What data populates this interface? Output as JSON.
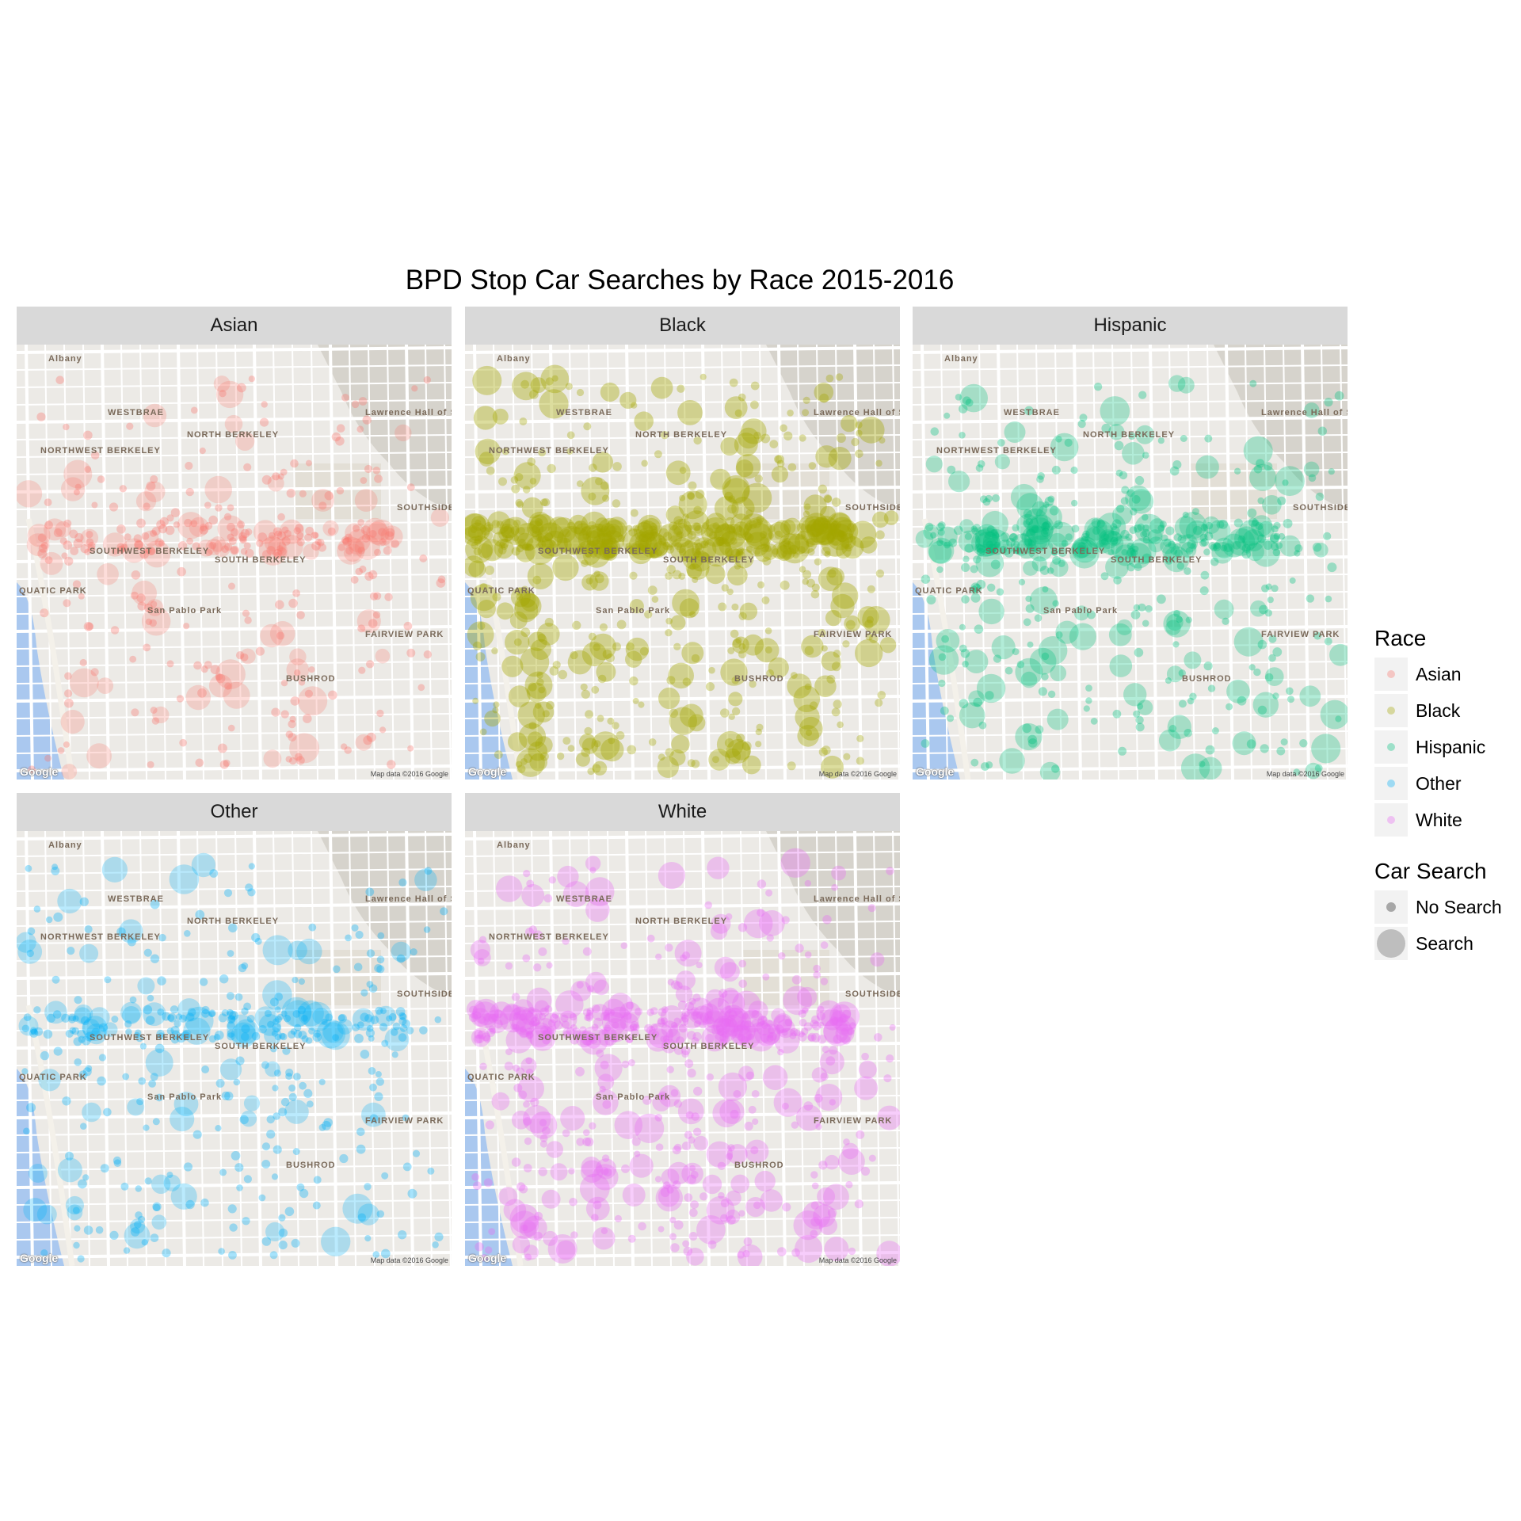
{
  "title": "BPD Stop Car Searches by Race 2015-2016",
  "panels": [
    {
      "label": "Asian",
      "color": "#F8766D",
      "density": 0.35
    },
    {
      "label": "Black",
      "color": "#A3A500",
      "density": 1.0
    },
    {
      "label": "Hispanic",
      "color": "#00BF7D",
      "density": 0.6
    },
    {
      "label": "Other",
      "color": "#00B0F6",
      "density": 0.45
    },
    {
      "label": "White",
      "color": "#E76BF3",
      "density": 0.8
    }
  ],
  "map": {
    "tags": [
      "Albany",
      "WESTBRAE",
      "NORTHWEST BERKELEY",
      "NORTH BERKELEY",
      "SOUTHWEST BERKELEY",
      "SOUTH BERKELEY",
      "SOUTHSIDE",
      "QUATIC PARK",
      "FAIRVIEW PARK",
      "BUSHROD",
      "San Pablo Park",
      "Lawrence Hall of Scien"
    ],
    "credit": "Map data ©2016 Google",
    "brand": "Google"
  },
  "legend": {
    "race_title": "Race",
    "race_keys": [
      {
        "label": "Asian",
        "color": "#F8766D"
      },
      {
        "label": "Black",
        "color": "#A3A500"
      },
      {
        "label": "Hispanic",
        "color": "#00BF7D"
      },
      {
        "label": "Other",
        "color": "#00B0F6"
      },
      {
        "label": "White",
        "color": "#E76BF3"
      }
    ],
    "search_title": "Car Search",
    "search_keys": [
      {
        "label": "No Search"
      },
      {
        "label": "Search"
      }
    ]
  }
}
